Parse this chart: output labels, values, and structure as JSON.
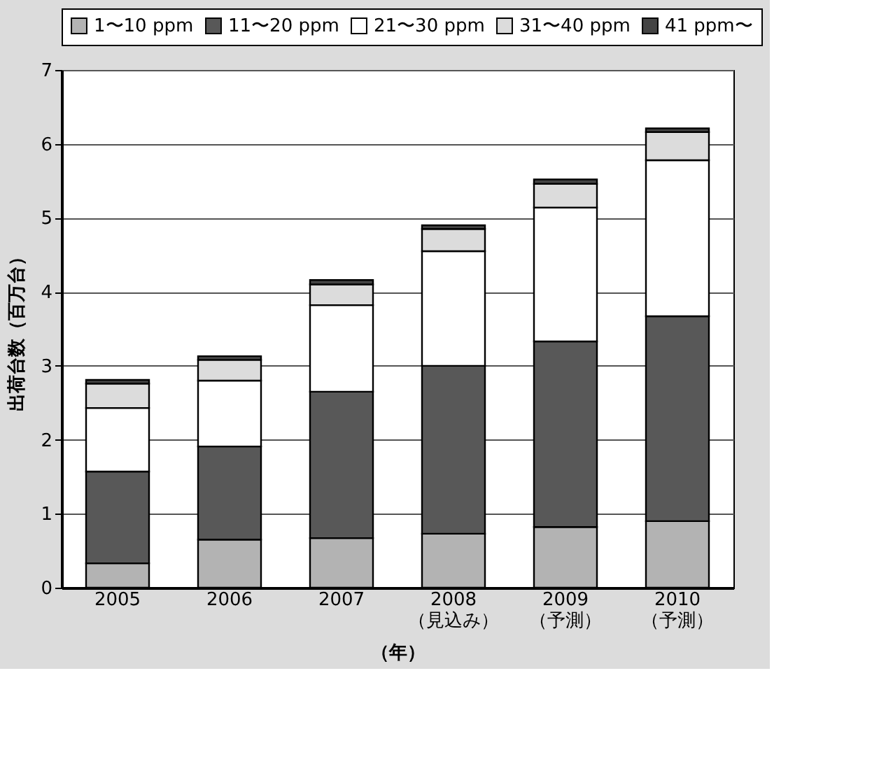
{
  "chart_data": {
    "type": "bar",
    "stacked": true,
    "xlabel": "（年）",
    "ylabel": "出荷台数（百万台）",
    "categories": [
      "2005",
      "2006",
      "2007",
      "2008\n（見込み）",
      "2009\n（予測）",
      "2010\n（予測）"
    ],
    "series": [
      {
        "name": "1〜10 ppm",
        "color": "#b3b3b3",
        "values": [
          0.33,
          0.65,
          0.67,
          0.73,
          0.82,
          0.9
        ]
      },
      {
        "name": "11〜20 ppm",
        "color": "#585858",
        "values": [
          1.24,
          1.26,
          1.98,
          2.27,
          2.51,
          2.77
        ]
      },
      {
        "name": "21〜30 ppm",
        "color": "#ffffff",
        "values": [
          0.86,
          0.89,
          1.17,
          1.55,
          1.81,
          2.11
        ]
      },
      {
        "name": "31〜40 ppm",
        "color": "#dcdcdc",
        "values": [
          0.33,
          0.28,
          0.28,
          0.3,
          0.32,
          0.38
        ]
      },
      {
        "name": "41 ppm〜",
        "color": "#444444",
        "values": [
          0.05,
          0.05,
          0.06,
          0.05,
          0.06,
          0.05
        ]
      }
    ],
    "ylim": [
      0,
      7
    ],
    "yticks": [
      0,
      1,
      2,
      3,
      4,
      5,
      6,
      7
    ],
    "grid": "y",
    "legend": "top"
  }
}
